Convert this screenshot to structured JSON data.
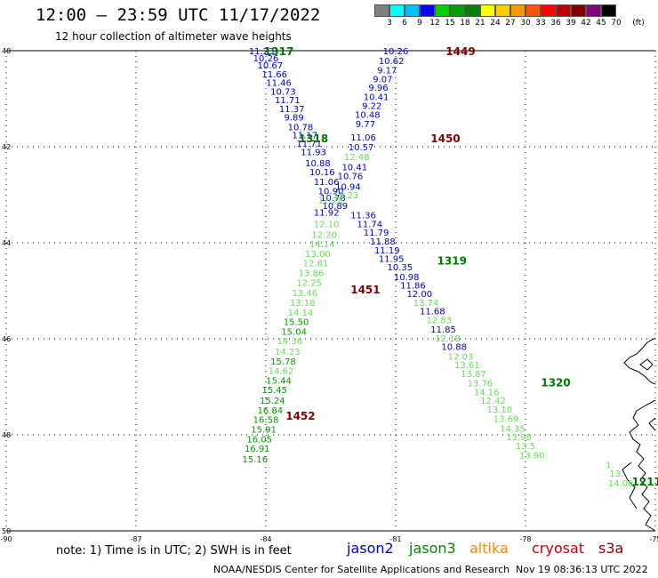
{
  "header": {
    "title": "12:00 – 23:59 UTC 11/17/2022",
    "subtitle": "12 hour collection of altimeter wave heights"
  },
  "legend": {
    "unit": "(ft)",
    "labels": [
      "3",
      "6",
      "9",
      "12",
      "15",
      "18",
      "21",
      "24",
      "27",
      "30",
      "33",
      "36",
      "39",
      "42",
      "45",
      "70"
    ],
    "colors": [
      "#808080",
      "#00ffff",
      "#00bfff",
      "#0000ff",
      "#00d000",
      "#00a000",
      "#008000",
      "#ffff00",
      "#ffcc00",
      "#ff9900",
      "#ff5500",
      "#ff0000",
      "#c00000",
      "#800000",
      "#800080",
      "#000000"
    ]
  },
  "axes": {
    "lat_ticks": [
      "40",
      "42",
      "44",
      "46",
      "48",
      "50"
    ],
    "lon_ticks": [
      "-90",
      "-87",
      "-84",
      "-81",
      "-78",
      "-75"
    ],
    "lon_range": [
      -90,
      -75
    ],
    "lat_range": [
      40,
      50
    ]
  },
  "colors": {
    "jason2": "#0000cc",
    "jason3": "#008800",
    "altika": "#ff8800",
    "cryosat": "#cc0000",
    "s3a": "#800000",
    "light_green": "#66dd55",
    "dark_green": "#009900",
    "track_label": "#007700",
    "pass_label_red": "#800000"
  },
  "tracks": [
    {
      "id": "pass-1317",
      "label": "1317",
      "label_color": "#007700",
      "label_pos": [
        -83.7,
        40.02
      ],
      "points": [
        {
          "lat": 40.0,
          "lon": -84.1,
          "v": "11.23",
          "c": "#0000cc"
        },
        {
          "lat": 40.15,
          "lon": -84.0,
          "v": "10.26",
          "c": "#0000cc"
        },
        {
          "lat": 40.3,
          "lon": -83.9,
          "v": "10.67",
          "c": "#0000cc"
        },
        {
          "lat": 40.48,
          "lon": -83.8,
          "v": "11.66",
          "c": "#0000cc"
        },
        {
          "lat": 40.66,
          "lon": -83.7,
          "v": "11.46",
          "c": "#0000cc"
        },
        {
          "lat": 40.84,
          "lon": -83.6,
          "v": "10.73",
          "c": "#0000cc"
        },
        {
          "lat": 41.02,
          "lon": -83.5,
          "v": "11.71",
          "c": "#0000cc"
        },
        {
          "lat": 41.2,
          "lon": -83.4,
          "v": "11.37",
          "c": "#0000cc"
        },
        {
          "lat": 41.38,
          "lon": -83.35,
          "v": "9.89",
          "c": "#0000cc"
        },
        {
          "lat": 41.58,
          "lon": -83.2,
          "v": "10.78",
          "c": "#0000cc"
        },
        {
          "lat": 41.75,
          "lon": -83.1,
          "v": "11.17",
          "c": "#0000cc"
        },
        {
          "lat": 41.93,
          "lon": -83.0,
          "v": "11.71",
          "c": "#0000cc"
        },
        {
          "lat": 42.1,
          "lon": -82.9,
          "v": "11.93",
          "c": "#0000cc"
        },
        {
          "lat": 42.33,
          "lon": -82.8,
          "v": "10.88",
          "c": "#0000cc"
        },
        {
          "lat": 42.52,
          "lon": -82.7,
          "v": "10.16",
          "c": "#0000cc"
        },
        {
          "lat": 42.72,
          "lon": -82.6,
          "v": "11.06",
          "c": "#0000cc"
        },
        {
          "lat": 42.92,
          "lon": -82.5,
          "v": "10.90",
          "c": "#0000cc"
        },
        {
          "lat": 43.06,
          "lon": -82.45,
          "v": "10.78",
          "c": "#0000cc"
        },
        {
          "lat": 43.22,
          "lon": -82.4,
          "v": "10.89",
          "c": "#0000cc"
        },
        {
          "lat": 43.42,
          "lon": -81.75,
          "v": "11.36",
          "c": "#0000cc"
        },
        {
          "lat": 43.6,
          "lon": -81.6,
          "v": "11.74",
          "c": "#0000cc"
        },
        {
          "lat": 43.78,
          "lon": -81.45,
          "v": "11.79",
          "c": "#0000cc"
        },
        {
          "lat": 43.96,
          "lon": -81.3,
          "v": "11.88",
          "c": "#0000cc"
        },
        {
          "lat": 44.15,
          "lon": -81.2,
          "v": "11.19",
          "c": "#0000cc"
        },
        {
          "lat": 44.32,
          "lon": -81.1,
          "v": "11.95",
          "c": "#0000cc"
        },
        {
          "lat": 44.5,
          "lon": -80.9,
          "v": "10.35",
          "c": "#0000cc"
        },
        {
          "lat": 44.7,
          "lon": -80.75,
          "v": "10.98",
          "c": "#0000cc"
        },
        {
          "lat": 44.88,
          "lon": -80.6,
          "v": "11.86",
          "c": "#0000cc"
        },
        {
          "lat": 45.06,
          "lon": -80.45,
          "v": "12.00",
          "c": "#0000cc"
        },
        {
          "lat": 45.24,
          "lon": -80.3,
          "v": "13.74",
          "c": "#66dd55"
        },
        {
          "lat": 45.42,
          "lon": -80.15,
          "v": "11.68",
          "c": "#0000cc"
        },
        {
          "lat": 45.6,
          "lon": -80.0,
          "v": "12.83",
          "c": "#66dd55"
        },
        {
          "lat": 45.8,
          "lon": -79.9,
          "v": "11.85",
          "c": "#0000cc"
        },
        {
          "lat": 45.98,
          "lon": -79.8,
          "v": "12.18",
          "c": "#66dd55"
        },
        {
          "lat": 46.16,
          "lon": -79.65,
          "v": "10.88",
          "c": "#0000cc"
        },
        {
          "lat": 46.36,
          "lon": -79.5,
          "v": "12.03",
          "c": "#66dd55"
        },
        {
          "lat": 46.54,
          "lon": -79.35,
          "v": "13.61",
          "c": "#66dd55"
        },
        {
          "lat": 46.72,
          "lon": -79.2,
          "v": "13.87",
          "c": "#66dd55"
        },
        {
          "lat": 46.92,
          "lon": -79.05,
          "v": "13.76",
          "c": "#66dd55"
        },
        {
          "lat": 47.1,
          "lon": -78.9,
          "v": "14.16",
          "c": "#66dd55"
        },
        {
          "lat": 47.28,
          "lon": -78.75,
          "v": "12.42",
          "c": "#66dd55"
        },
        {
          "lat": 47.46,
          "lon": -78.6,
          "v": "13.10",
          "c": "#66dd55"
        },
        {
          "lat": 47.66,
          "lon": -78.45,
          "v": "13.69",
          "c": "#66dd55"
        },
        {
          "lat": 47.86,
          "lon": -78.3,
          "v": "14.35",
          "c": "#66dd55"
        },
        {
          "lat": 48.04,
          "lon": -78.15,
          "v": "13.98",
          "c": "#66dd55"
        },
        {
          "lat": 48.22,
          "lon": -78.0,
          "v": "13.5",
          "c": "#66dd55"
        },
        {
          "lat": 48.42,
          "lon": -77.85,
          "v": "13.90",
          "c": "#66dd55"
        }
      ]
    },
    {
      "id": "pass-1318",
      "label": "1318",
      "label_color": "#007700",
      "label_pos": [
        -82.9,
        41.83
      ],
      "points": []
    },
    {
      "id": "pass-1319",
      "label": "1319",
      "label_color": "#007700",
      "label_pos": [
        -79.7,
        44.38
      ],
      "points": []
    },
    {
      "id": "pass-1320",
      "label": "1320",
      "label_color": "#007700",
      "label_pos": [
        -77.3,
        46.92
      ],
      "points": []
    },
    {
      "id": "pass-1449",
      "label": "1449",
      "label_color": "#800000",
      "label_pos": [
        -79.5,
        40.02
      ],
      "points": [
        {
          "lat": 40.0,
          "lon": -81.0,
          "v": "10.26",
          "c": "#0000cc"
        },
        {
          "lat": 40.2,
          "lon": -81.1,
          "v": "10.62",
          "c": "#0000cc"
        },
        {
          "lat": 40.4,
          "lon": -81.2,
          "v": "9.17",
          "c": "#0000cc"
        },
        {
          "lat": 40.58,
          "lon": -81.3,
          "v": "9.07",
          "c": "#0000cc"
        },
        {
          "lat": 40.76,
          "lon": -81.4,
          "v": "9.96",
          "c": "#0000cc"
        },
        {
          "lat": 40.95,
          "lon": -81.45,
          "v": "10.41",
          "c": "#0000cc"
        },
        {
          "lat": 41.14,
          "lon": -81.55,
          "v": "9.22",
          "c": "#0000cc"
        },
        {
          "lat": 41.32,
          "lon": -81.65,
          "v": "10.48",
          "c": "#0000cc"
        },
        {
          "lat": 41.52,
          "lon": -81.7,
          "v": "9.77",
          "c": "#0000cc"
        },
        {
          "lat": 41.8,
          "lon": -81.75,
          "v": "11.06",
          "c": "#0000cc"
        },
        {
          "lat": 42.0,
          "lon": -81.8,
          "v": "10.57",
          "c": "#0000cc"
        },
        {
          "lat": 42.2,
          "lon": -81.9,
          "v": "12.48",
          "c": "#66dd55"
        },
        {
          "lat": 42.42,
          "lon": -81.95,
          "v": "10.41",
          "c": "#0000cc"
        },
        {
          "lat": 42.6,
          "lon": -82.05,
          "v": "10.76",
          "c": "#0000cc"
        },
        {
          "lat": 42.82,
          "lon": -82.1,
          "v": "10.94",
          "c": "#0000cc"
        },
        {
          "lat": 43.0,
          "lon": -82.15,
          "v": "12.23",
          "c": "#66dd55"
        },
        {
          "lat": 43.1,
          "lon": -82.5,
          "v": "12.28",
          "c": "#66dd55"
        },
        {
          "lat": 43.36,
          "lon": -82.6,
          "v": "11.92",
          "c": "#0000cc"
        },
        {
          "lat": 43.6,
          "lon": -82.6,
          "v": "12.10",
          "c": "#66dd55"
        },
        {
          "lat": 43.82,
          "lon": -82.65,
          "v": "12.20",
          "c": "#66dd55"
        },
        {
          "lat": 44.02,
          "lon": -82.7,
          "v": "14.14",
          "c": "#66dd55"
        },
        {
          "lat": 44.22,
          "lon": -82.8,
          "v": "13.00",
          "c": "#66dd55"
        },
        {
          "lat": 44.42,
          "lon": -82.85,
          "v": "12.81",
          "c": "#66dd55"
        },
        {
          "lat": 44.62,
          "lon": -82.95,
          "v": "13.86",
          "c": "#66dd55"
        },
        {
          "lat": 44.82,
          "lon": -83.0,
          "v": "12.25",
          "c": "#66dd55"
        },
        {
          "lat": 45.04,
          "lon": -83.1,
          "v": "13.46",
          "c": "#66dd55"
        },
        {
          "lat": 45.24,
          "lon": -83.15,
          "v": "13.18",
          "c": "#66dd55"
        },
        {
          "lat": 45.44,
          "lon": -83.2,
          "v": "14.14",
          "c": "#66dd55"
        },
        {
          "lat": 45.64,
          "lon": -83.3,
          "v": "15.50",
          "c": "#009900"
        },
        {
          "lat": 45.84,
          "lon": -83.35,
          "v": "15.04",
          "c": "#009900"
        },
        {
          "lat": 46.04,
          "lon": -83.45,
          "v": "14.36",
          "c": "#66dd55"
        },
        {
          "lat": 46.26,
          "lon": -83.5,
          "v": "14.23",
          "c": "#66dd55"
        },
        {
          "lat": 46.46,
          "lon": -83.6,
          "v": "15.78",
          "c": "#009900"
        },
        {
          "lat": 46.66,
          "lon": -83.65,
          "v": "14.62",
          "c": "#66dd55"
        },
        {
          "lat": 46.86,
          "lon": -83.7,
          "v": "15.44",
          "c": "#009900"
        },
        {
          "lat": 47.06,
          "lon": -83.8,
          "v": "15.45",
          "c": "#009900"
        },
        {
          "lat": 47.28,
          "lon": -83.85,
          "v": "15.24",
          "c": "#009900"
        },
        {
          "lat": 47.48,
          "lon": -83.9,
          "v": "16.84",
          "c": "#009900"
        },
        {
          "lat": 47.68,
          "lon": -84.0,
          "v": "16.58",
          "c": "#009900"
        },
        {
          "lat": 47.88,
          "lon": -84.05,
          "v": "15.91",
          "c": "#009900"
        },
        {
          "lat": 48.08,
          "lon": -84.15,
          "v": "16.05",
          "c": "#009900"
        },
        {
          "lat": 48.28,
          "lon": -84.2,
          "v": "16.91",
          "c": "#009900"
        },
        {
          "lat": 48.5,
          "lon": -84.25,
          "v": "15.16",
          "c": "#009900"
        }
      ]
    },
    {
      "id": "pass-1450",
      "label": "1450",
      "label_color": "#800000",
      "label_pos": [
        -79.85,
        41.83
      ],
      "points": []
    },
    {
      "id": "pass-1451",
      "label": "1451",
      "label_color": "#800000",
      "label_pos": [
        -81.7,
        44.98
      ],
      "points": []
    },
    {
      "id": "pass-1452",
      "label": "1452",
      "label_color": "#800000",
      "label_pos": [
        -83.2,
        47.61
      ],
      "points": []
    },
    {
      "id": "pass-edge",
      "label": "1211",
      "label_color": "#007700",
      "label_pos": [
        -75.2,
        48.98
      ],
      "points": [
        {
          "lat": 48.62,
          "lon": -76.05,
          "v": "1.",
          "c": "#66dd55"
        },
        {
          "lat": 48.8,
          "lon": -75.9,
          "v": "13.",
          "c": "#66dd55"
        },
        {
          "lat": 49.0,
          "lon": -75.8,
          "v": "14.08",
          "c": "#66dd55"
        }
      ]
    }
  ],
  "note": {
    "text": "note: 1) Time is in UTC; 2) SWH is in feet",
    "satellites": [
      {
        "name": "jason2",
        "color": "#0000cc"
      },
      {
        "name": "jason3",
        "color": "#008800"
      },
      {
        "name": "altika",
        "color": "#ff8800"
      },
      {
        "name": "cryosat",
        "color": "#cc0000"
      },
      {
        "name": "s3a",
        "color": "#800000"
      }
    ]
  },
  "footer": {
    "agency": "NOAA/NESDIS Center for Satellite Applications and Research",
    "timestamp": "Nov 19 08:36:13 UTC 2022"
  }
}
